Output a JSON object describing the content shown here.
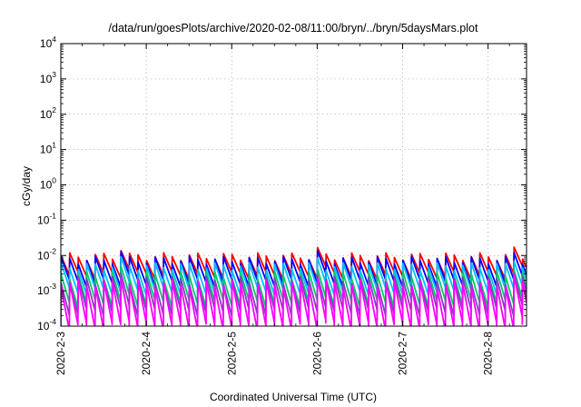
{
  "chart_data": {
    "type": "line",
    "title": "/data/run/goesPlots/archive/2020-02-08/11:00/bryn/../bryn/5daysMars.plot",
    "xlabel": "Coordinated Universal Time (UTC)",
    "ylabel": "cGy/day",
    "y_scale": "log",
    "ylim": [
      0.0001,
      10000
    ],
    "y_ticks": [
      {
        "base": "10",
        "exp": "4"
      },
      {
        "base": "10",
        "exp": "3"
      },
      {
        "base": "10",
        "exp": "2"
      },
      {
        "base": "10",
        "exp": "1"
      },
      {
        "base": "10",
        "exp": "0"
      },
      {
        "base": "10",
        "exp": "-1"
      },
      {
        "base": "10",
        "exp": "-2"
      },
      {
        "base": "10",
        "exp": "-3"
      },
      {
        "base": "10",
        "exp": "-4"
      }
    ],
    "x_tick_labels": [
      "2020-2-3",
      "2020-2-4",
      "2020-2-5",
      "2020-2-6",
      "2020-2-7",
      "2020-2-8"
    ],
    "xlim_days": [
      0,
      5.45
    ],
    "grid": true,
    "legend": "none",
    "series": [
      {
        "color": "#ff0000",
        "peak": 0.0095,
        "floor": 0.0028
      },
      {
        "color": "#0000ff",
        "peak": 0.0075,
        "floor": 0.0017
      },
      {
        "color": "#00bfff",
        "peak": 0.005,
        "floor": 0.001
      },
      {
        "color": "#00cc66",
        "peak": 0.0028,
        "floor": 0.00045
      },
      {
        "color": "#8040c0",
        "peak": 0.002,
        "floor": 0.00025
      },
      {
        "color": "#ff00ff",
        "peak": 0.0016,
        "floor": 0.0001
      }
    ]
  }
}
